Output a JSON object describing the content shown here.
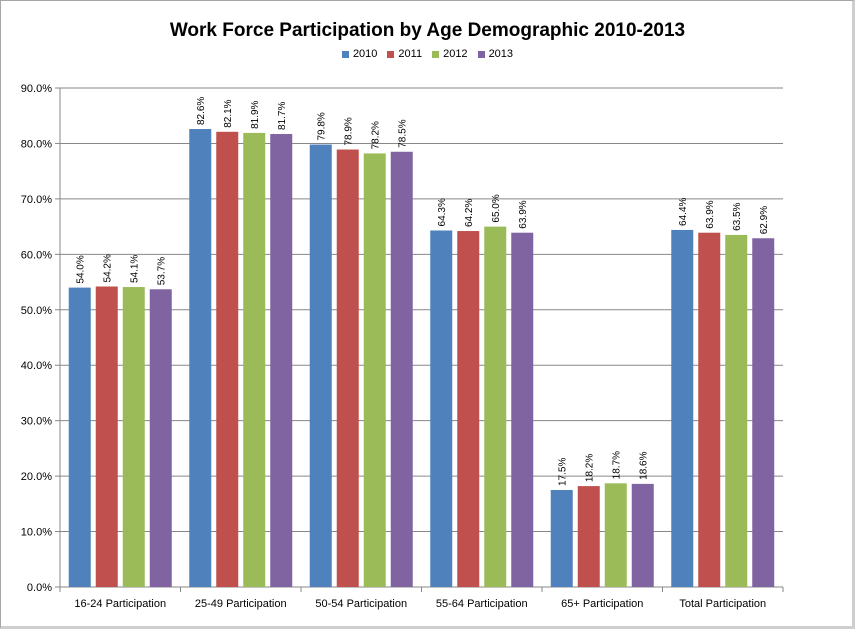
{
  "chart_data": {
    "type": "bar",
    "title": "Work Force Participation by Age Demographic 2010-2013",
    "categories": [
      "16-24 Participation",
      "25-49 Participation",
      "50-54 Participation",
      "55-64 Participation",
      "65+ Participation",
      "Total Participation"
    ],
    "series": [
      {
        "name": "2010",
        "color": "#4f81bd",
        "values": [
          54.0,
          82.6,
          79.8,
          64.3,
          17.5,
          64.4
        ],
        "labels": [
          "54.0%",
          "82.6%",
          "79.8%",
          "64.3%",
          "17.5%",
          "64.4%"
        ]
      },
      {
        "name": "2011",
        "color": "#c0504d",
        "values": [
          54.2,
          82.1,
          78.9,
          64.2,
          18.2,
          63.9
        ],
        "labels": [
          "54.2%",
          "82.1%",
          "78.9%",
          "64.2%",
          "18.2%",
          "63.9%"
        ]
      },
      {
        "name": "2012",
        "color": "#9bbb59",
        "values": [
          54.1,
          81.9,
          78.2,
          65.0,
          18.7,
          63.5
        ],
        "labels": [
          "54.1%",
          "81.9%",
          "78.2%",
          "65.0%",
          "18.7%",
          "63.5%"
        ]
      },
      {
        "name": "2013",
        "color": "#8064a2",
        "values": [
          53.7,
          81.7,
          78.5,
          63.9,
          18.6,
          62.9
        ],
        "labels": [
          "53.7%",
          "81.7%",
          "78.5%",
          "63.9%",
          "18.6%",
          "62.9%"
        ]
      }
    ],
    "ylim": [
      0,
      90
    ],
    "yticks": [
      0,
      10,
      20,
      30,
      40,
      50,
      60,
      70,
      80,
      90
    ],
    "ytick_labels": [
      "0.0%",
      "10.0%",
      "20.0%",
      "30.0%",
      "40.0%",
      "50.0%",
      "60.0%",
      "70.0%",
      "80.0%",
      "90.0%"
    ],
    "grid": true,
    "legend_position": "top"
  }
}
